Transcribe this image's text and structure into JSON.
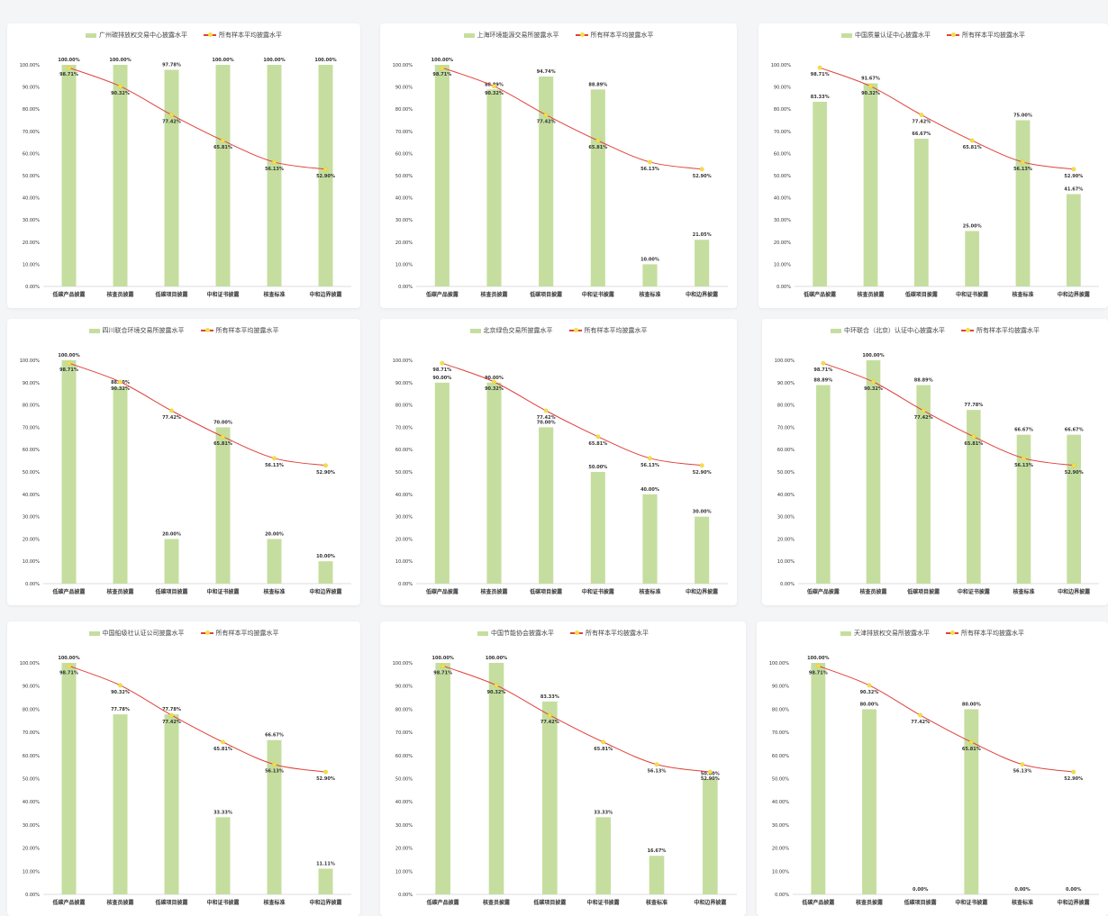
{
  "legend_suffix_bar": "",
  "chart_data": [
    {
      "type": "bar",
      "legend": [
        "广州碳排放权交易中心披露水平",
        "所有样本平均披露水平"
      ],
      "categories": [
        "低碳产品披露",
        "核查员披露",
        "低碳项目披露",
        "中和证书披露",
        "核查标准",
        "中和边界披露"
      ],
      "series": [
        {
          "name": "广州碳排放权交易中心披露水平",
          "values": [
            100.0,
            100.0,
            97.78,
            100.0,
            100.0,
            100.0
          ]
        },
        {
          "name": "所有样本平均披露水平",
          "values": [
            98.71,
            90.32,
            77.42,
            65.81,
            56.13,
            52.9
          ]
        }
      ],
      "bar_labels": [
        "100.00%",
        "100.00%",
        "97.78%",
        "100.00%",
        "100.00%",
        "100.00%"
      ],
      "line_labels": [
        "98.71%",
        "90.32%",
        "77.42%",
        "65.81%",
        "56.13%",
        "52.90%"
      ],
      "ylim": [
        0,
        100
      ],
      "yticks": [
        "0.00%",
        "10.00%",
        "20.00%",
        "30.00%",
        "40.00%",
        "50.00%",
        "60.00%",
        "70.00%",
        "80.00%",
        "90.00%",
        "100.00%"
      ]
    },
    {
      "type": "bar",
      "legend": [
        "上海环境能源交易所披露水平",
        "所有样本平均披露水平"
      ],
      "categories": [
        "低碳产品披露",
        "核查员披露",
        "低碳项目披露",
        "中和证书披露",
        "核查标准",
        "中和边界披露"
      ],
      "series": [
        {
          "name": "上海环境能源交易所披露水平",
          "values": [
            100.0,
            88.89,
            94.74,
            88.89,
            10.0,
            21.05
          ]
        },
        {
          "name": "所有样本平均披露水平",
          "values": [
            98.71,
            90.32,
            77.42,
            65.81,
            56.13,
            52.9
          ]
        }
      ],
      "bar_labels": [
        "100.00%",
        "88.89%",
        "94.74%",
        "88.89%",
        "10.00%",
        "21.05%"
      ],
      "line_labels": [
        "98.71%",
        "90.32%",
        "77.42%",
        "65.81%",
        "56.13%",
        "52.90%"
      ],
      "ylim": [
        0,
        100
      ],
      "yticks": [
        "0.00%",
        "10.00%",
        "20.00%",
        "30.00%",
        "40.00%",
        "50.00%",
        "60.00%",
        "70.00%",
        "80.00%",
        "90.00%",
        "100.00%"
      ]
    },
    {
      "type": "bar",
      "legend": [
        "中国质量认证中心披露水平",
        "所有样本平均披露水平"
      ],
      "categories": [
        "低碳产品披露",
        "核查员披露",
        "低碳项目披露",
        "中和证书披露",
        "核查标准",
        "中和边界披露"
      ],
      "series": [
        {
          "name": "中国质量认证中心披露水平",
          "values": [
            83.33,
            91.67,
            66.67,
            25.0,
            75.0,
            41.67
          ]
        },
        {
          "name": "所有样本平均披露水平",
          "values": [
            98.71,
            90.32,
            77.42,
            65.81,
            56.13,
            52.9
          ]
        }
      ],
      "bar_labels": [
        "83.33%",
        "91.67%",
        "66.67%",
        "25.00%",
        "75.00%",
        "41.67%"
      ],
      "line_labels": [
        "98.71%",
        "90.32%",
        "77.42%",
        "65.81%",
        "56.13%",
        "52.90%"
      ],
      "ylim": [
        0,
        100
      ],
      "yticks": [
        "0.00%",
        "10.00%",
        "20.00%",
        "30.00%",
        "40.00%",
        "50.00%",
        "60.00%",
        "70.00%",
        "80.00%",
        "90.00%",
        "100.00%"
      ]
    },
    {
      "type": "bar",
      "legend": [
        "四川联合环境交易所披露水平",
        "所有样本平均披露水平"
      ],
      "categories": [
        "低碳产品披露",
        "核查员披露",
        "低碳项目披露",
        "中和证书披露",
        "核查标准",
        "中和边界披露"
      ],
      "series": [
        {
          "name": "四川联合环境交易所披露水平",
          "values": [
            100.0,
            88.0,
            20.0,
            70.0,
            20.0,
            10.0
          ]
        },
        {
          "name": "所有样本平均披露水平",
          "values": [
            98.71,
            90.32,
            77.42,
            65.81,
            56.13,
            52.9
          ]
        }
      ],
      "bar_labels": [
        "100.00%",
        "88.00%",
        "20.00%",
        "70.00%",
        "20.00%",
        "10.00%"
      ],
      "line_labels": [
        "98.71%",
        "90.32%",
        "77.42%",
        "65.81%",
        "56.13%",
        "52.90%"
      ],
      "ylim": [
        0,
        100
      ],
      "yticks": [
        "0.00%",
        "10.00%",
        "20.00%",
        "30.00%",
        "40.00%",
        "50.00%",
        "60.00%",
        "70.00%",
        "80.00%",
        "90.00%",
        "100.00%"
      ]
    },
    {
      "type": "bar",
      "legend": [
        "北京绿色交易所披露水平",
        "所有样本平均披露水平"
      ],
      "categories": [
        "低碳产品披露",
        "核查员披露",
        "低碳项目披露",
        "中和证书披露",
        "核查标准",
        "中和边界披露"
      ],
      "series": [
        {
          "name": "北京绿色交易所披露水平",
          "values": [
            90.0,
            90.0,
            70.0,
            50.0,
            40.0,
            30.0
          ]
        },
        {
          "name": "所有样本平均披露水平",
          "values": [
            98.71,
            90.32,
            77.42,
            65.81,
            56.13,
            52.9
          ]
        }
      ],
      "bar_labels": [
        "90.00%",
        "90.00%",
        "70.00%",
        "50.00%",
        "40.00%",
        "30.00%"
      ],
      "line_labels": [
        "98.71%",
        "90.32%",
        "77.42%",
        "65.81%",
        "56.13%",
        "52.90%"
      ],
      "ylim": [
        0,
        100
      ],
      "yticks": [
        "0.00%",
        "10.00%",
        "20.00%",
        "30.00%",
        "40.00%",
        "50.00%",
        "60.00%",
        "70.00%",
        "80.00%",
        "90.00%",
        "100.00%"
      ]
    },
    {
      "type": "bar",
      "legend": [
        "中环联合（北京）认证中心披露水平",
        "所有样本平均披露水平"
      ],
      "categories": [
        "低碳产品披露",
        "核查员披露",
        "低碳项目披露",
        "中和证书披露",
        "核查标准",
        "中和边界披露"
      ],
      "series": [
        {
          "name": "中环联合（北京）认证中心披露水平",
          "values": [
            88.89,
            100.0,
            88.89,
            77.78,
            66.67,
            66.67
          ]
        },
        {
          "name": "所有样本平均披露水平",
          "values": [
            98.71,
            90.32,
            77.42,
            65.81,
            56.13,
            52.9
          ]
        }
      ],
      "bar_labels": [
        "88.89%",
        "100.00%",
        "88.89%",
        "77.78%",
        "66.67%",
        "66.67%"
      ],
      "line_labels": [
        "98.71%",
        "90.32%",
        "77.42%",
        "65.81%",
        "56.13%",
        "52.90%"
      ],
      "ylim": [
        0,
        100
      ],
      "yticks": [
        "0.00%",
        "10.00%",
        "20.00%",
        "30.00%",
        "40.00%",
        "50.00%",
        "60.00%",
        "70.00%",
        "80.00%",
        "90.00%",
        "100.00%"
      ]
    },
    {
      "type": "bar",
      "legend": [
        "中国船级社认证公司披露水平",
        "所有样本平均披露水平"
      ],
      "categories": [
        "低碳产品披露",
        "核查员披露",
        "低碳项目披露",
        "中和证书披露",
        "核查标准",
        "中和边界披露"
      ],
      "series": [
        {
          "name": "中国船级社认证公司披露水平",
          "values": [
            100.0,
            77.78,
            77.78,
            33.33,
            66.67,
            11.11
          ]
        },
        {
          "name": "所有样本平均披露水平",
          "values": [
            98.71,
            90.32,
            77.42,
            65.81,
            56.13,
            52.9
          ]
        }
      ],
      "bar_labels": [
        "100.00%",
        "77.78%",
        "77.78%",
        "33.33%",
        "66.67%",
        "11.11%"
      ],
      "line_labels": [
        "98.71%",
        "90.32%",
        "77.42%",
        "65.81%",
        "56.13%",
        "52.90%"
      ],
      "ylim": [
        0,
        100
      ],
      "yticks": [
        "0.00%",
        "10.00%",
        "20.00%",
        "30.00%",
        "40.00%",
        "50.00%",
        "60.00%",
        "70.00%",
        "80.00%",
        "90.00%",
        "100.00%"
      ]
    },
    {
      "type": "bar",
      "legend": [
        "中国节能协会披露水平",
        "所有样本平均披露水平"
      ],
      "categories": [
        "低碳产品披露",
        "核查员披露",
        "低碳项目披露",
        "中和证书披露",
        "核查标准",
        "中和边界披露"
      ],
      "series": [
        {
          "name": "中国节能协会披露水平",
          "values": [
            100.0,
            100.0,
            83.33,
            33.33,
            16.67,
            50.0
          ]
        },
        {
          "name": "所有样本平均披露水平",
          "values": [
            98.71,
            90.32,
            77.42,
            65.81,
            56.13,
            52.9
          ]
        }
      ],
      "bar_labels": [
        "100.00%",
        "100.00%",
        "83.33%",
        "33.33%",
        "16.67%",
        "50.00%"
      ],
      "line_labels": [
        "98.71%",
        "90.32%",
        "77.42%",
        "65.81%",
        "56.13%",
        "52.90%"
      ],
      "ylim": [
        0,
        100
      ],
      "yticks": [
        "0.00%",
        "10.00%",
        "20.00%",
        "30.00%",
        "40.00%",
        "50.00%",
        "60.00%",
        "70.00%",
        "80.00%",
        "90.00%",
        "100.00%"
      ]
    },
    {
      "type": "bar",
      "legend": [
        "天津排放权交易所披露水平",
        "所有样本平均披露水平"
      ],
      "categories": [
        "低碳产品披露",
        "核查员披露",
        "低碳项目披露",
        "中和证书披露",
        "核查标准",
        "中和边界披露"
      ],
      "series": [
        {
          "name": "天津排放权交易所披露水平",
          "values": [
            100.0,
            80.0,
            0.0,
            80.0,
            0.0,
            0.0
          ]
        },
        {
          "name": "所有样本平均披露水平",
          "values": [
            98.71,
            90.32,
            77.42,
            65.81,
            56.13,
            52.9
          ]
        }
      ],
      "bar_labels": [
        "100.00%",
        "80.00%",
        "0.00%",
        "80.00%",
        "0.00%",
        "0.00%"
      ],
      "line_labels": [
        "98.71%",
        "90.32%",
        "77.42%",
        "65.81%",
        "56.13%",
        "52.90%"
      ],
      "ylim": [
        0,
        100
      ],
      "yticks": [
        "0.00%",
        "10.00%",
        "20.00%",
        "30.00%",
        "40.00%",
        "50.00%",
        "60.00%",
        "70.00%",
        "80.00%",
        "90.00%",
        "100.00%"
      ]
    }
  ],
  "colors": {
    "bar": "#c5de9f",
    "line": "#e0413a",
    "marker": "#f2df48"
  }
}
